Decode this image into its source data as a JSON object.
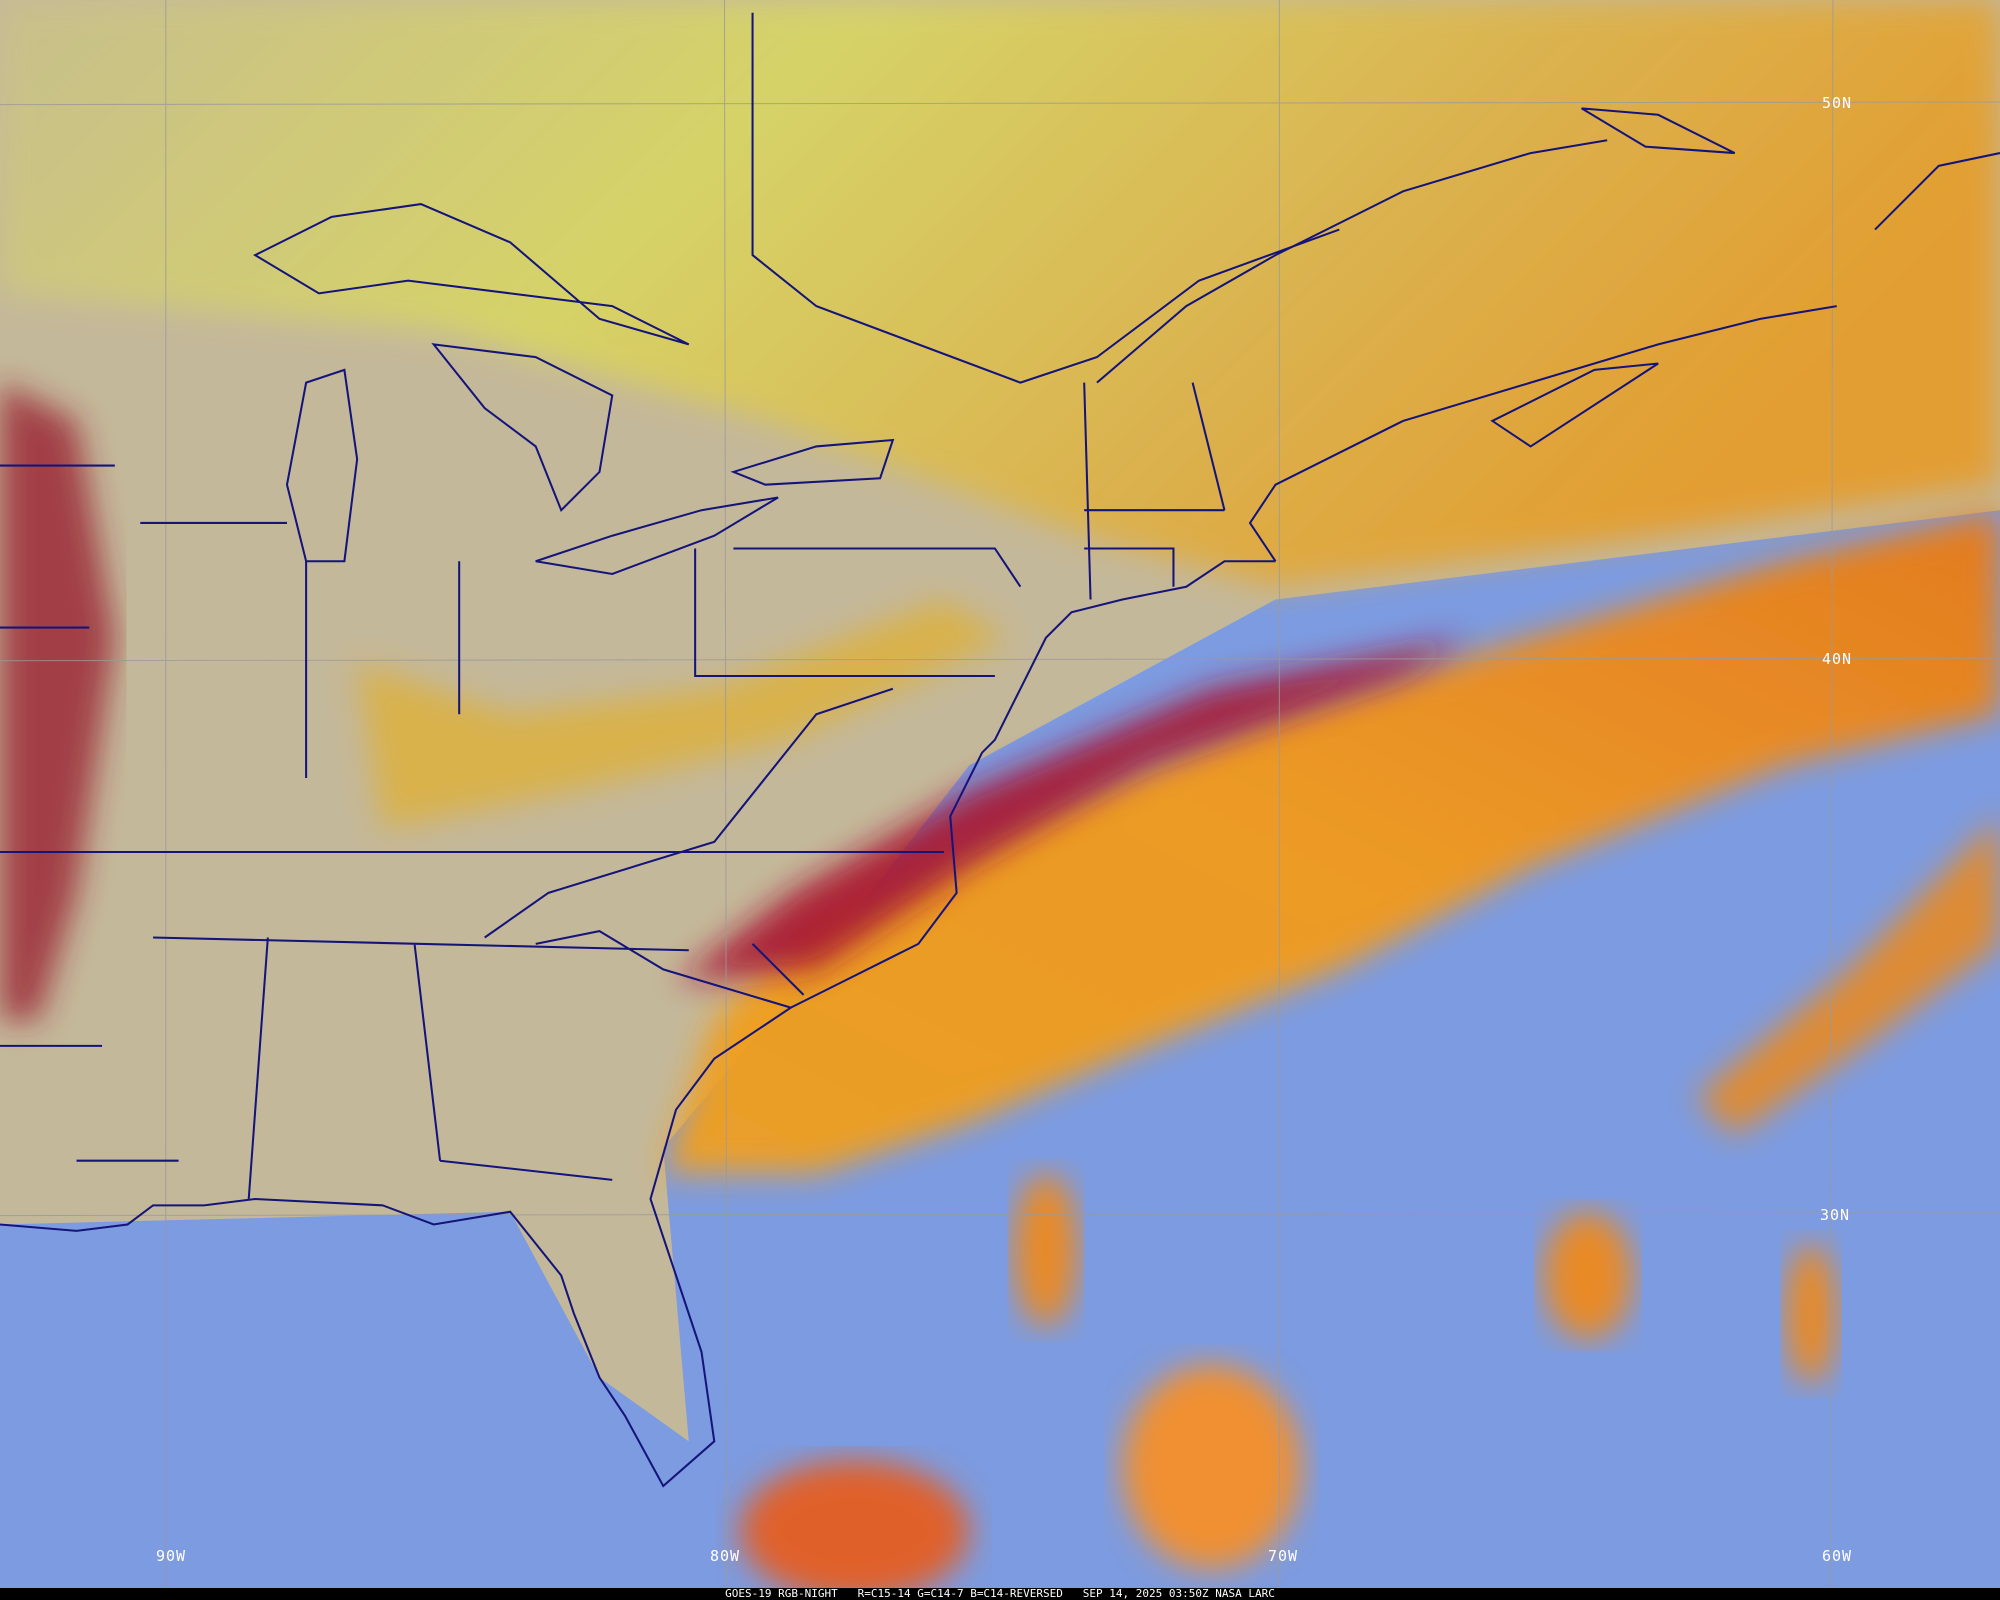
{
  "caption": "GOES-19 RGB-NIGHT   R=C15-14 G=C14-7 B=C14-REVERSED   SEP 14, 2025 03:50Z NASA LARC",
  "graticule": {
    "latitudes": [
      "50N",
      "40N",
      "30N"
    ],
    "longitudes": [
      "90W",
      "80W",
      "70W",
      "60W"
    ]
  },
  "colors": {
    "boundaries": "#14147a",
    "graticule": "#9a9a9a",
    "ocean_clear": "#7d9be0",
    "land_clear": "#c8b898",
    "high_cloud_yellow": "#d8d850",
    "cloud_orange": "#f0a020",
    "cloud_red": "#a01830"
  }
}
